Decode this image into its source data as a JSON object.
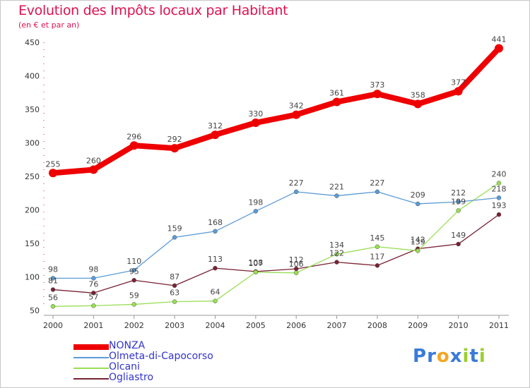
{
  "chart_data": {
    "type": "line",
    "title": "Evolution des Impôts locaux par Habitant",
    "subtitle": "(en € et par an)",
    "x": [
      "2000",
      "2001",
      "2002",
      "2003",
      "2004",
      "2005",
      "2006",
      "2007",
      "2008",
      "2009",
      "2010",
      "2011"
    ],
    "ylim": [
      50,
      450
    ],
    "yticks": [
      50,
      100,
      150,
      200,
      250,
      300,
      350,
      400,
      450
    ],
    "grid": false,
    "legend_position": "bottom-left",
    "series": [
      {
        "name": "NONZA",
        "color": "#ee0000",
        "values": [
          255,
          260,
          296,
          292,
          312,
          330,
          342,
          361,
          373,
          358,
          377,
          441
        ]
      },
      {
        "name": "Olmeta-di-Capocorso",
        "color": "#5b9bd5",
        "values": [
          98,
          98,
          110,
          159,
          168,
          198,
          227,
          221,
          227,
          209,
          212,
          218
        ]
      },
      {
        "name": "Olcani",
        "color": "#99dd55",
        "values": [
          56,
          57,
          59,
          63,
          64,
          107,
          106,
          134,
          145,
          139,
          199,
          240
        ]
      },
      {
        "name": "Ogliastro",
        "color": "#772233",
        "values": [
          81,
          76,
          95,
          87,
          113,
          108,
          112,
          122,
          117,
          142,
          149,
          193
        ]
      }
    ]
  },
  "logo": {
    "text": "Proxiti",
    "letters": [
      {
        "ch": "P",
        "color": "#3a7ad9"
      },
      {
        "ch": "r",
        "color": "#3a7ad9"
      },
      {
        "ch": "o",
        "color": "#f5a623"
      },
      {
        "ch": "x",
        "color": "#3a7ad9"
      },
      {
        "ch": "i",
        "color": "#9bcf2d"
      },
      {
        "ch": "t",
        "color": "#3a7ad9"
      },
      {
        "ch": "i",
        "color": "#9bcf2d"
      }
    ]
  }
}
